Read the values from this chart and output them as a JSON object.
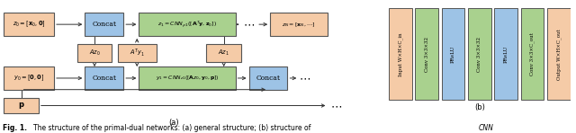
{
  "fig_width": 6.4,
  "fig_height": 1.48,
  "bg_color": "#ffffff",
  "salmon_color": "#F5CBA7",
  "green_color": "#A9D18E",
  "blue_color": "#9DC3E6",
  "panel_b_blocks": [
    {
      "label": "Input W×H×C_in",
      "color": "#F5CBA7"
    },
    {
      "label": "Conv 3×3×32",
      "color": "#A9D18E"
    },
    {
      "label": "PReLU",
      "color": "#9DC3E6"
    },
    {
      "label": "Conv 3×3×32",
      "color": "#A9D18E"
    },
    {
      "label": "PReLU",
      "color": "#9DC3E6"
    },
    {
      "label": "Conv 3×3×C_out",
      "color": "#A9D18E"
    },
    {
      "label": "Output W×H×C_out",
      "color": "#F5CBA7"
    }
  ]
}
